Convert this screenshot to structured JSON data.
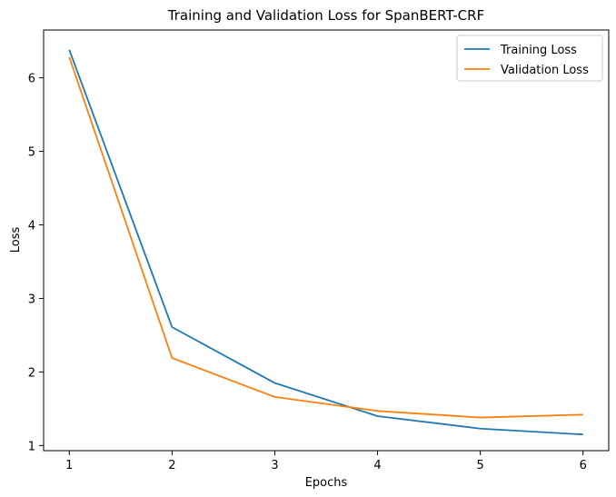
{
  "chart_data": {
    "type": "line",
    "title": "Training and Validation Loss for SpanBERT-CRF",
    "xlabel": "Epochs",
    "ylabel": "Loss",
    "x": [
      1,
      2,
      3,
      4,
      5,
      6
    ],
    "xticks": [
      "1",
      "2",
      "3",
      "4",
      "5",
      "6"
    ],
    "yticks": [
      "1",
      "2",
      "3",
      "4",
      "5",
      "6"
    ],
    "xlim": [
      0.75,
      6.25
    ],
    "ylim": [
      0.93,
      6.65
    ],
    "grid": false,
    "legend_position": "top-right",
    "series": [
      {
        "name": "Training Loss",
        "color": "#1f77b4",
        "values": [
          6.38,
          2.61,
          1.85,
          1.4,
          1.23,
          1.15
        ]
      },
      {
        "name": "Validation Loss",
        "color": "#ff7f0e",
        "values": [
          6.28,
          2.19,
          1.66,
          1.47,
          1.38,
          1.42
        ]
      }
    ]
  }
}
